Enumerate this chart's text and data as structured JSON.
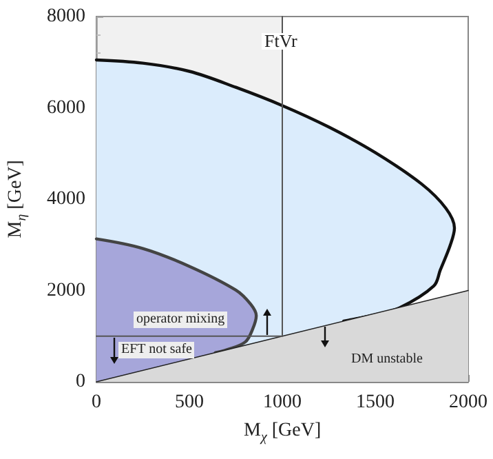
{
  "chart_data": {
    "type": "area",
    "xlabel": "M$_{χ}$ [GeV]",
    "ylabel": "M$_{η}$ [GeV]",
    "xlim": [
      0,
      2000
    ],
    "xticks": [
      0,
      500,
      1000,
      1500,
      2000
    ],
    "ylim": [
      0,
      8000
    ],
    "yticks": [
      0,
      2000,
      4000,
      6000,
      8000
    ],
    "grid": false,
    "marker": "none",
    "line_style": "solid",
    "series": [
      {
        "color": "#dbecfc",
        "x": [
          0,
          250,
          500,
          750,
          1000,
          1250,
          1500,
          1750,
          1880,
          1926,
          1904,
          1850,
          1815,
          1630,
          1480,
          1356,
          1330
        ],
        "values": [
          7050,
          6980,
          6800,
          6450,
          6050,
          5580,
          5020,
          4330,
          3800,
          3370,
          3000,
          2450,
          2100,
          1620,
          1450,
          1350,
          1330
        ]
      },
      {
        "color": "#a6a6da",
        "x": [
          0,
          250,
          500,
          750,
          830,
          860,
          840,
          800,
          700,
          640
        ],
        "values": [
          3130,
          2920,
          2530,
          2010,
          1700,
          1450,
          1150,
          870,
          700,
          640
        ]
      },
      {
        "color": "#d9d9d9",
        "x": [
          0,
          2000
        ],
        "values": [
          0,
          2000
        ]
      },
      {
        "type": "line",
        "color": "#555555",
        "x": [
          0,
          1000
        ],
        "values": [
          1000,
          1000
        ]
      },
      {
        "type": "line",
        "color": "#555555",
        "x": [
          1000,
          1000
        ],
        "values": [
          1000,
          8000
        ]
      }
    ],
    "bands": [
      {
        "axis": "x",
        "from": 0,
        "to": 1000,
        "color": "#dcdcdc"
      }
    ],
    "annotations": [
      "FtVr",
      "operator mixing",
      "EFT not safe",
      "DM unstable"
    ]
  }
}
